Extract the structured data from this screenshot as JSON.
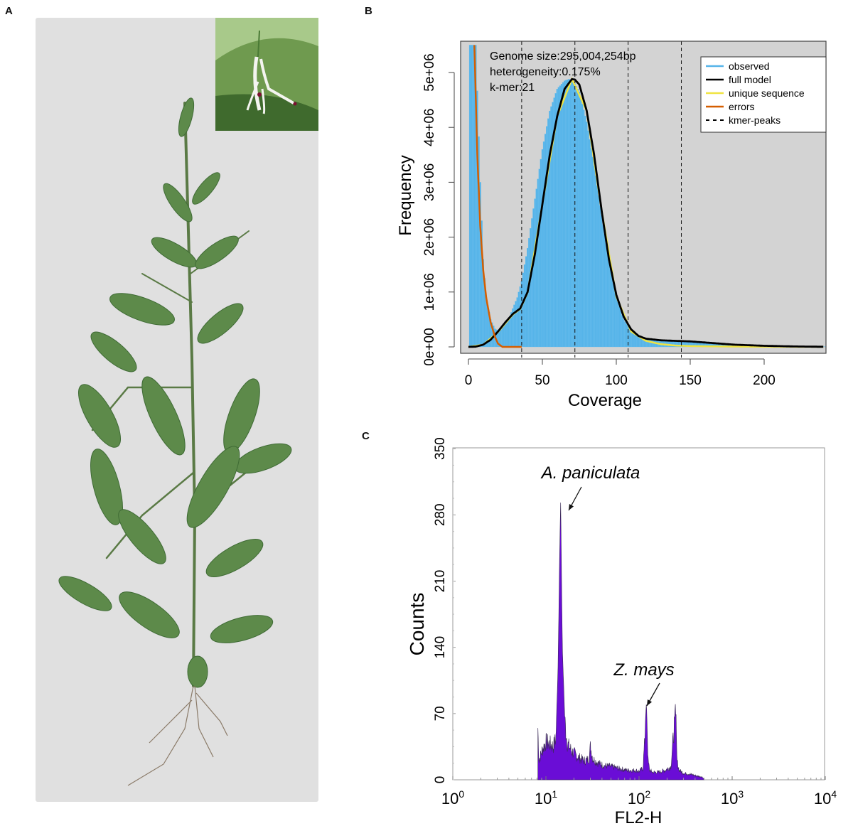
{
  "panels": {
    "a": {
      "label": "A",
      "description": "Photograph of Andrographis paniculata plant with flower inset"
    },
    "b": {
      "label": "B"
    },
    "c": {
      "label": "C"
    }
  },
  "chart_data": [
    {
      "panel": "B",
      "type": "bar",
      "title": "",
      "annotations": [
        "Genome size:295,004,254bp",
        "heterogeneity:0.175%",
        "k-mer:21"
      ],
      "xlabel": "Coverage",
      "ylabel": "Frequency",
      "xlim": [
        -5,
        242
      ],
      "ylim": [
        -300000,
        5500000
      ],
      "xticks": [
        0,
        50,
        100,
        150,
        200
      ],
      "xtick_labels": [
        "0",
        "50",
        "100",
        "150",
        "200"
      ],
      "yticks": [
        0,
        1000000,
        2000000,
        3000000,
        4000000,
        5000000
      ],
      "ytick_labels": [
        "0e+00",
        "1e+06",
        "2e+06",
        "3e+06",
        "4e+06",
        "5e+06"
      ],
      "background": "#d3d3d3",
      "legend": {
        "position": "top-right",
        "entries": [
          {
            "label": "observed",
            "color": "#56b4e9",
            "style": "solid"
          },
          {
            "label": "full model",
            "color": "#000000",
            "style": "solid"
          },
          {
            "label": "unique sequence",
            "color": "#f0e442",
            "style": "solid"
          },
          {
            "label": "errors",
            "color": "#d55e00",
            "style": "solid"
          },
          {
            "label": "kmer-peaks",
            "color": "#000000",
            "style": "dashed"
          }
        ]
      },
      "kmer_peaks": [
        36,
        72,
        108,
        144
      ],
      "series": [
        {
          "name": "observed",
          "x": [
            1,
            3,
            5,
            8,
            10,
            12,
            15,
            18,
            20,
            22,
            25,
            28,
            30,
            33,
            36,
            40,
            45,
            50,
            55,
            60,
            65,
            68,
            70,
            72,
            75,
            80,
            85,
            90,
            95,
            100,
            105,
            110,
            115,
            120,
            130,
            140,
            150,
            160,
            170,
            180,
            190,
            200,
            210,
            220,
            240
          ],
          "values": [
            5500000,
            5500000,
            5500000,
            3000000,
            1600000,
            900000,
            500000,
            330000,
            300000,
            320000,
            420000,
            560000,
            700000,
            900000,
            1200000,
            1800000,
            2700000,
            3600000,
            4300000,
            4700000,
            4850000,
            4880000,
            4860000,
            4800000,
            4650000,
            4100000,
            3300000,
            2400000,
            1550000,
            900000,
            500000,
            290000,
            190000,
            140000,
            110000,
            100000,
            90000,
            75000,
            55000,
            40000,
            25000,
            15000,
            8000,
            5000,
            2000
          ]
        },
        {
          "name": "full model",
          "x": [
            0,
            5,
            10,
            15,
            20,
            25,
            30,
            35,
            40,
            45,
            50,
            55,
            60,
            65,
            70,
            72,
            75,
            80,
            85,
            90,
            95,
            100,
            105,
            110,
            115,
            120,
            130,
            140,
            150,
            160,
            170,
            180,
            200,
            220,
            240
          ],
          "values": [
            0,
            5000,
            40000,
            130000,
            280000,
            450000,
            600000,
            700000,
            1000000,
            1700000,
            2600000,
            3500000,
            4200000,
            4700000,
            4880000,
            4870000,
            4780000,
            4300000,
            3500000,
            2500000,
            1600000,
            950000,
            550000,
            320000,
            200000,
            150000,
            120000,
            110000,
            100000,
            80000,
            60000,
            40000,
            20000,
            8000,
            2000
          ]
        },
        {
          "name": "unique sequence",
          "x": [
            0,
            10,
            20,
            30,
            35,
            40,
            50,
            60,
            70,
            80,
            90,
            100,
            110,
            120,
            130,
            140,
            150,
            170,
            200,
            240
          ],
          "values": [
            0,
            40000,
            270000,
            590000,
            690000,
            990000,
            2600000,
            4200000,
            4880000,
            4300000,
            2500000,
            920000,
            280000,
            110000,
            50000,
            25000,
            15000,
            8000,
            3000,
            1000
          ]
        },
        {
          "name": "errors",
          "x": [
            4,
            5,
            6,
            8,
            10,
            12,
            15,
            18,
            20,
            23,
            36
          ],
          "values": [
            5500000,
            4500000,
            3500000,
            2200000,
            1400000,
            900000,
            450000,
            180000,
            60000,
            0,
            0
          ]
        }
      ]
    },
    {
      "panel": "C",
      "type": "area",
      "title": "",
      "xlabel": "FL2-H",
      "ylabel": "Counts",
      "xscale": "log",
      "xlim": [
        1,
        10000
      ],
      "ylim": [
        0,
        350
      ],
      "xticks": [
        1,
        10,
        100,
        1000,
        10000
      ],
      "xtick_labels": [
        "10^0",
        "10^1",
        "10^2",
        "10^3",
        "10^4"
      ],
      "xtick_base": "10",
      "xtick_exponents": [
        "0",
        "1",
        "2",
        "3",
        "4"
      ],
      "yticks": [
        0,
        70,
        140,
        210,
        280,
        350
      ],
      "ytick_labels": [
        "0",
        "70",
        "140",
        "210",
        "280",
        "350"
      ],
      "fill_color": "#6a0dd6",
      "annotations": [
        {
          "text": "A. paniculata",
          "x": 14.2,
          "y": 296
        },
        {
          "text": "Z. mays",
          "x": 120,
          "y": 82
        }
      ],
      "series": [
        {
          "name": "FL2-H histogram",
          "x": [
            8.2,
            8.4,
            9,
            10,
            11,
            12,
            12.8,
            13.5,
            14,
            14.4,
            15,
            16,
            17,
            19,
            22,
            26,
            29,
            30,
            32,
            36,
            42,
            50,
            60,
            75,
            90,
            100,
            110,
            115,
            118,
            120,
            122,
            125,
            130,
            140,
            160,
            190,
            220,
            240,
            245,
            250,
            255,
            270,
            300,
            350,
            420,
            480,
            500
          ],
          "values": [
            55,
            20,
            30,
            40,
            38,
            35,
            45,
            120,
            230,
            296,
            140,
            60,
            38,
            30,
            24,
            20,
            22,
            35,
            22,
            18,
            15,
            14,
            12,
            10,
            10,
            9,
            12,
            40,
            70,
            82,
            60,
            20,
            10,
            8,
            8,
            10,
            14,
            60,
            82,
            55,
            20,
            10,
            7,
            6,
            4,
            3,
            0
          ]
        }
      ]
    }
  ]
}
